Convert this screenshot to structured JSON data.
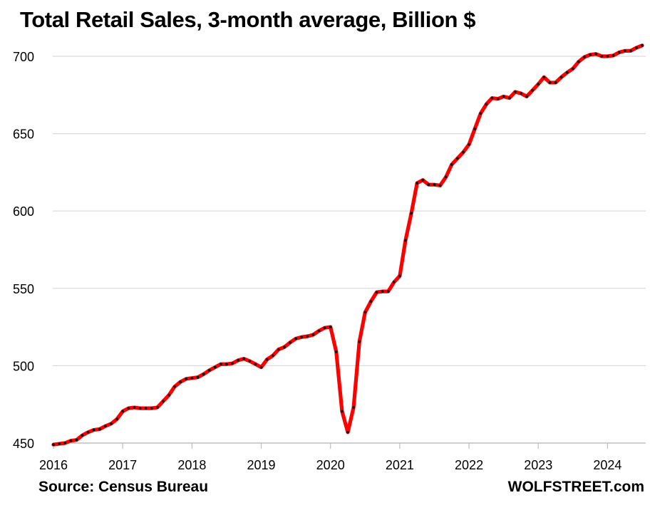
{
  "chart_data": {
    "type": "line",
    "title": "Total Retail Sales, 3-month average, Billion $",
    "source": "Source: Census Bureau",
    "brand": "WOLFSTREET.com",
    "xlabel": "",
    "ylabel": "",
    "ylim": [
      450,
      710
    ],
    "yticks": [
      450,
      500,
      550,
      600,
      650,
      700
    ],
    "ytick_labels": [
      "450",
      "500",
      "550",
      "600",
      "650",
      "700"
    ],
    "xlim": [
      2016.0,
      2024.62
    ],
    "xticks": [
      2016,
      2017,
      2018,
      2019,
      2020,
      2021,
      2022,
      2023,
      2024
    ],
    "xtick_labels": [
      "2016",
      "2017",
      "2018",
      "2019",
      "2020",
      "2021",
      "2022",
      "2023",
      "2024"
    ],
    "grid": true,
    "colors": {
      "line": "#ff0000",
      "marker": "#111111",
      "grid": "#d9d9d9",
      "axis": "#bfbfbf"
    },
    "series": [
      {
        "name": "Total Retail Sales, 3-month average",
        "x": [
          2016.0,
          2016.083,
          2016.167,
          2016.25,
          2016.333,
          2016.417,
          2016.5,
          2016.583,
          2016.667,
          2016.75,
          2016.833,
          2016.917,
          2017.0,
          2017.083,
          2017.167,
          2017.25,
          2017.333,
          2017.417,
          2017.5,
          2017.583,
          2017.667,
          2017.75,
          2017.833,
          2017.917,
          2018.0,
          2018.083,
          2018.167,
          2018.25,
          2018.333,
          2018.417,
          2018.5,
          2018.583,
          2018.667,
          2018.75,
          2018.833,
          2018.917,
          2019.0,
          2019.083,
          2019.167,
          2019.25,
          2019.333,
          2019.417,
          2019.5,
          2019.583,
          2019.667,
          2019.75,
          2019.833,
          2019.917,
          2020.0,
          2020.083,
          2020.167,
          2020.25,
          2020.333,
          2020.417,
          2020.5,
          2020.583,
          2020.667,
          2020.75,
          2020.833,
          2020.917,
          2021.0,
          2021.083,
          2021.167,
          2021.25,
          2021.333,
          2021.417,
          2021.5,
          2021.583,
          2021.667,
          2021.75,
          2021.833,
          2021.917,
          2022.0,
          2022.083,
          2022.167,
          2022.25,
          2022.333,
          2022.417,
          2022.5,
          2022.583,
          2022.667,
          2022.75,
          2022.833,
          2022.917,
          2023.0,
          2023.083,
          2023.167,
          2023.25,
          2023.333,
          2023.417,
          2023.5,
          2023.583,
          2023.667,
          2023.75,
          2023.833,
          2023.917,
          2024.0,
          2024.083,
          2024.167,
          2024.25,
          2024.333,
          2024.417,
          2024.5
        ],
        "values": [
          449,
          449.5,
          450,
          451.5,
          452,
          455,
          457,
          458.5,
          459,
          461,
          462.5,
          465.5,
          470.5,
          472.5,
          473,
          472.5,
          472.5,
          472.5,
          473,
          477,
          481,
          486.5,
          489.5,
          491.5,
          492,
          492.5,
          494.5,
          497,
          499,
          501,
          501,
          501.5,
          503.5,
          504.5,
          503,
          501,
          499,
          504,
          506.5,
          510.5,
          512,
          515,
          517.5,
          518.5,
          519,
          520,
          522.5,
          524.5,
          525,
          509,
          470.5,
          457,
          473,
          515.5,
          534.5,
          541.5,
          547.5,
          548,
          548,
          554,
          558,
          581,
          598.5,
          618,
          620,
          617,
          617,
          616.5,
          622,
          630,
          634,
          638,
          643,
          653,
          663,
          669,
          673,
          672.5,
          674,
          673,
          677,
          676,
          674,
          678,
          682,
          686.5,
          683,
          683,
          686.5,
          689.5,
          692,
          696.5,
          699.5,
          701,
          701.5,
          700,
          700,
          700.5,
          702.5,
          703.5,
          703.5,
          705.5,
          707
        ]
      }
    ]
  }
}
